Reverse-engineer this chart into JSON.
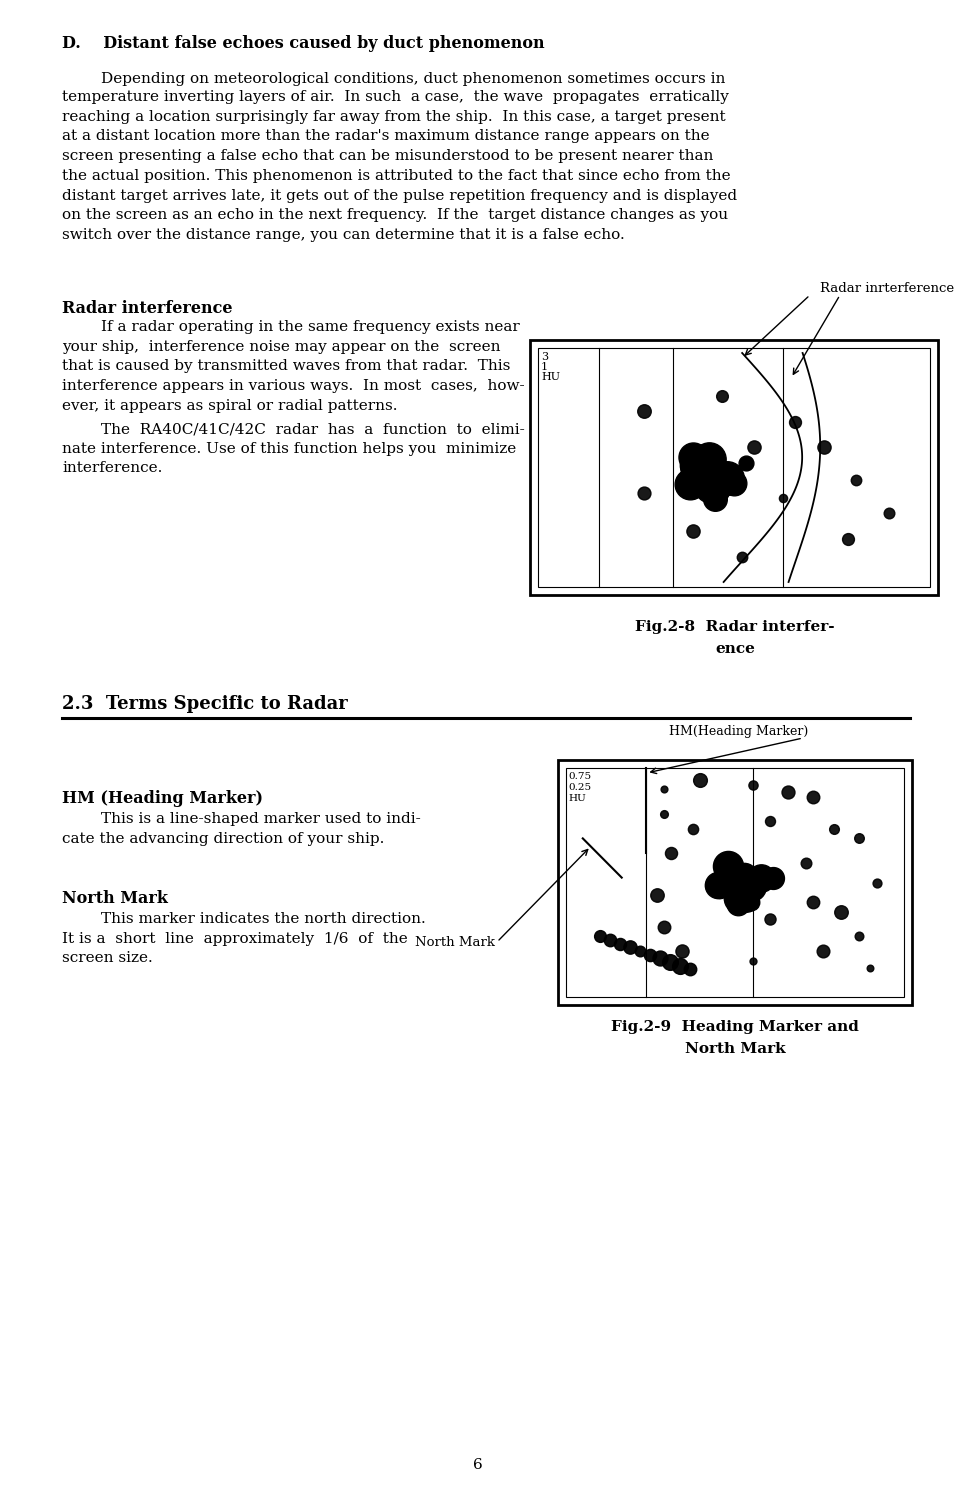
{
  "page_number": "6",
  "bg_color": "#ffffff",
  "text_color": "#000000",
  "section_d_title": "D.    Distant false echoes caused by duct phenomenon",
  "section_d_first_line": "        Depending on meteorological conditions, duct phenomenon sometimes occurs in",
  "section_d_body": "temperature inverting layers of air.  In such  a case,  the wave  propagates  erratically\nreaching a location surprisingly far away from the ship.  In this case, a target present\nat a distant location more than the radar's maximum distance range appears on the\nscreen presenting a false echo that can be misunderstood to be present nearer than\nthe actual position. This phenomenon is attributed to the fact that since echo from the\ndistant target arrives late, it gets out of the pulse repetition frequency and is displayed\non the screen as an echo in the next frequency.  If the  target distance changes as you\nswitch over the distance range, you can determine that it is a false echo.",
  "radar_interference_title": "Radar interference",
  "radar_interference_body1": "        If a radar operating in the same frequency exists near\nyour ship,  interference noise may appear on the  screen\nthat is caused by transmitted waves from that radar.  This\ninterference appears in various ways.  In most  cases,  how-\never, it appears as spiral or radial patterns.",
  "radar_interference_body2": "        The  RA40C/41C/42C  radar  has  a  function  to  elimi-\nnate interference. Use of this function helps you  minimize\ninterference.",
  "fig28_label": "Radar inrterference",
  "fig28_caption_line1": "Fig.2-8  Radar interfer-",
  "fig28_caption_line2": "ence",
  "section_23_title": "2.3  Terms Specific to Radar",
  "hm_title": "HM (Heading Marker)",
  "hm_body": "        This is a line-shaped marker used to indi-\ncate the advancing direction of your ship.",
  "north_mark_title": "North Mark",
  "north_mark_body": "        This marker indicates the north direction.\nIt is a  short  line  approximately  1/6  of  the\nscreen size.",
  "fig29_label_hm": "HM(Heading Marker)",
  "fig29_label_nm": "North Mark",
  "fig29_caption_line1": "Fig.2-9  Heading Marker and",
  "fig29_caption_line2": "North Mark"
}
